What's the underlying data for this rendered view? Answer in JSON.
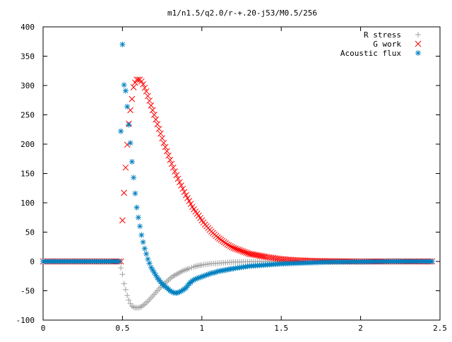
{
  "chart_data": {
    "type": "scatter",
    "title": "m1/n1.5/q2.0/r-+.20-j53/M0.5/256",
    "xlabel": "",
    "ylabel": "",
    "xlim": [
      0,
      2.5
    ],
    "ylim": [
      -100,
      400
    ],
    "xticks": [
      0,
      0.5,
      1,
      1.5,
      2,
      2.5
    ],
    "xtick_labels": [
      "0",
      "0.5",
      "1",
      "1.5",
      "2",
      "2.5"
    ],
    "yticks": [
      -100,
      -50,
      0,
      50,
      100,
      150,
      200,
      250,
      300,
      350,
      400
    ],
    "ytick_labels": [
      "-100",
      "-50",
      "0",
      "50",
      "100",
      "150",
      "200",
      "250",
      "300",
      "350",
      "400"
    ],
    "grid": false,
    "legend_position": "top-right",
    "series": [
      {
        "name": "R stress",
        "marker": "plus",
        "color": "#a0a0a0",
        "x": [
          0.0,
          0.1,
          0.2,
          0.3,
          0.4,
          0.48,
          0.5,
          0.51,
          0.52,
          0.53,
          0.54,
          0.55,
          0.56,
          0.57,
          0.58,
          0.6,
          0.62,
          0.64,
          0.66,
          0.68,
          0.7,
          0.72,
          0.74,
          0.76,
          0.78,
          0.8,
          0.82,
          0.84,
          0.86,
          0.88,
          0.9,
          0.92,
          0.95,
          0.98,
          1.0,
          1.05,
          1.1,
          1.15,
          1.2,
          1.3,
          1.4,
          1.5,
          1.7,
          2.0,
          2.2,
          2.45
        ],
        "y": [
          0,
          0,
          0,
          0,
          0,
          0,
          -22,
          -38,
          -48,
          -58,
          -66,
          -72,
          -76,
          -78,
          -79,
          -79,
          -77,
          -73,
          -68,
          -62,
          -56,
          -50,
          -44,
          -39,
          -34,
          -29,
          -25,
          -22,
          -19,
          -16,
          -14,
          -12,
          -9,
          -7,
          -6,
          -4,
          -3,
          -2,
          -1,
          -0.5,
          -0.3,
          -0.2,
          -0.1,
          0,
          0,
          0
        ]
      },
      {
        "name": "G work",
        "marker": "cross",
        "color": "#ff0000",
        "x": [
          0.0,
          0.1,
          0.2,
          0.3,
          0.4,
          0.49,
          0.5,
          0.51,
          0.52,
          0.53,
          0.54,
          0.55,
          0.56,
          0.57,
          0.58,
          0.59,
          0.6,
          0.61,
          0.62,
          0.63,
          0.64,
          0.65,
          0.66,
          0.68,
          0.7,
          0.72,
          0.74,
          0.76,
          0.78,
          0.8,
          0.82,
          0.84,
          0.86,
          0.88,
          0.9,
          0.92,
          0.94,
          0.96,
          0.98,
          1.0,
          1.02,
          1.04,
          1.06,
          1.08,
          1.1,
          1.12,
          1.14,
          1.16,
          1.18,
          1.2,
          1.22,
          1.24,
          1.26,
          1.28,
          1.3,
          1.32,
          1.34,
          1.36,
          1.38,
          1.4,
          1.45,
          1.5,
          1.55,
          1.6,
          1.7,
          1.8,
          1.9,
          2.0,
          2.1,
          2.2,
          2.3,
          2.45
        ],
        "y": [
          0,
          0,
          0,
          0,
          0,
          0,
          70,
          117,
          160,
          199,
          235,
          258,
          277,
          297,
          305,
          310,
          310,
          310,
          307,
          302,
          296,
          290,
          282,
          266,
          250,
          234,
          218,
          202,
          188,
          173,
          160,
          147,
          135,
          124,
          113,
          103,
          93,
          85,
          78,
          70,
          63,
          57,
          51,
          46,
          41,
          37,
          33,
          29,
          26,
          23,
          21,
          19,
          17,
          15,
          13,
          12,
          11,
          10,
          9,
          8,
          6,
          4,
          3,
          2,
          1,
          0.5,
          0.2,
          0,
          0,
          0,
          0,
          0
        ]
      },
      {
        "name": "Acoustic flux",
        "marker": "star",
        "color": "#0080c0",
        "x": [
          0.0,
          0.1,
          0.2,
          0.3,
          0.4,
          0.48,
          0.49,
          0.5,
          0.51,
          0.52,
          0.53,
          0.54,
          0.55,
          0.56,
          0.57,
          0.58,
          0.59,
          0.6,
          0.61,
          0.62,
          0.63,
          0.64,
          0.65,
          0.66,
          0.67,
          0.68,
          0.7,
          0.72,
          0.74,
          0.76,
          0.78,
          0.8,
          0.82,
          0.84,
          0.86,
          0.88,
          0.9,
          0.92,
          0.94,
          0.96,
          0.98,
          1.0,
          1.02,
          1.04,
          1.06,
          1.08,
          1.1,
          1.12,
          1.14,
          1.16,
          1.18,
          1.2,
          1.25,
          1.3,
          1.35,
          1.4,
          1.5,
          1.6,
          1.7,
          1.8,
          2.0,
          2.2,
          2.45
        ],
        "y": [
          0,
          0,
          0,
          0,
          0,
          0,
          222,
          370,
          301,
          291,
          264,
          233,
          202,
          170,
          143,
          116,
          92,
          75,
          60,
          45,
          33,
          22,
          13,
          4,
          -3,
          -10,
          -19,
          -28,
          -35,
          -41,
          -45,
          -50,
          -53,
          -54,
          -52,
          -49,
          -45,
          -38,
          -33,
          -30,
          -28,
          -26,
          -24,
          -22,
          -20,
          -19,
          -17,
          -16,
          -15,
          -14,
          -13,
          -12,
          -10,
          -8,
          -7,
          -6,
          -4,
          -3,
          -2,
          -1,
          -0.5,
          0,
          0
        ]
      }
    ]
  }
}
